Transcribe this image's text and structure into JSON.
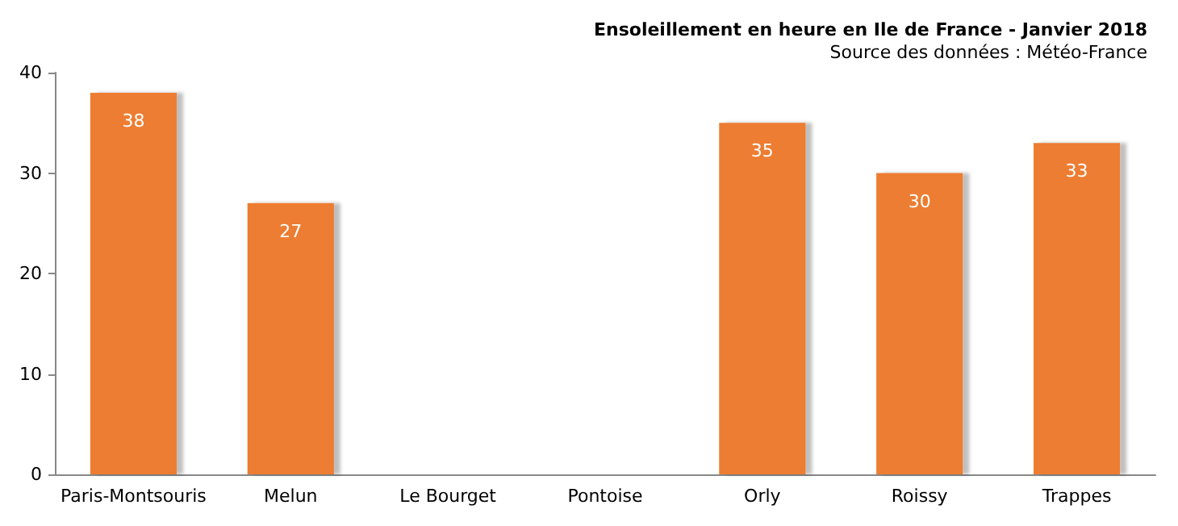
{
  "chart_data": {
    "type": "bar",
    "title": "Ensoleillement en heure en Ile de France - Janvier 2018",
    "subtitle": "Source des données : Météo-France",
    "categories": [
      "Paris-Montsouris",
      "Melun",
      "Le Bourget",
      "Pontoise",
      "Orly",
      "Roissy",
      "Trappes"
    ],
    "values": [
      38,
      27,
      null,
      null,
      35,
      30,
      33
    ],
    "color": "#ed7d31",
    "ylim": [
      0,
      40
    ],
    "yticks": [
      0,
      10,
      20,
      30,
      40
    ],
    "grid": false,
    "data_labels": true
  }
}
